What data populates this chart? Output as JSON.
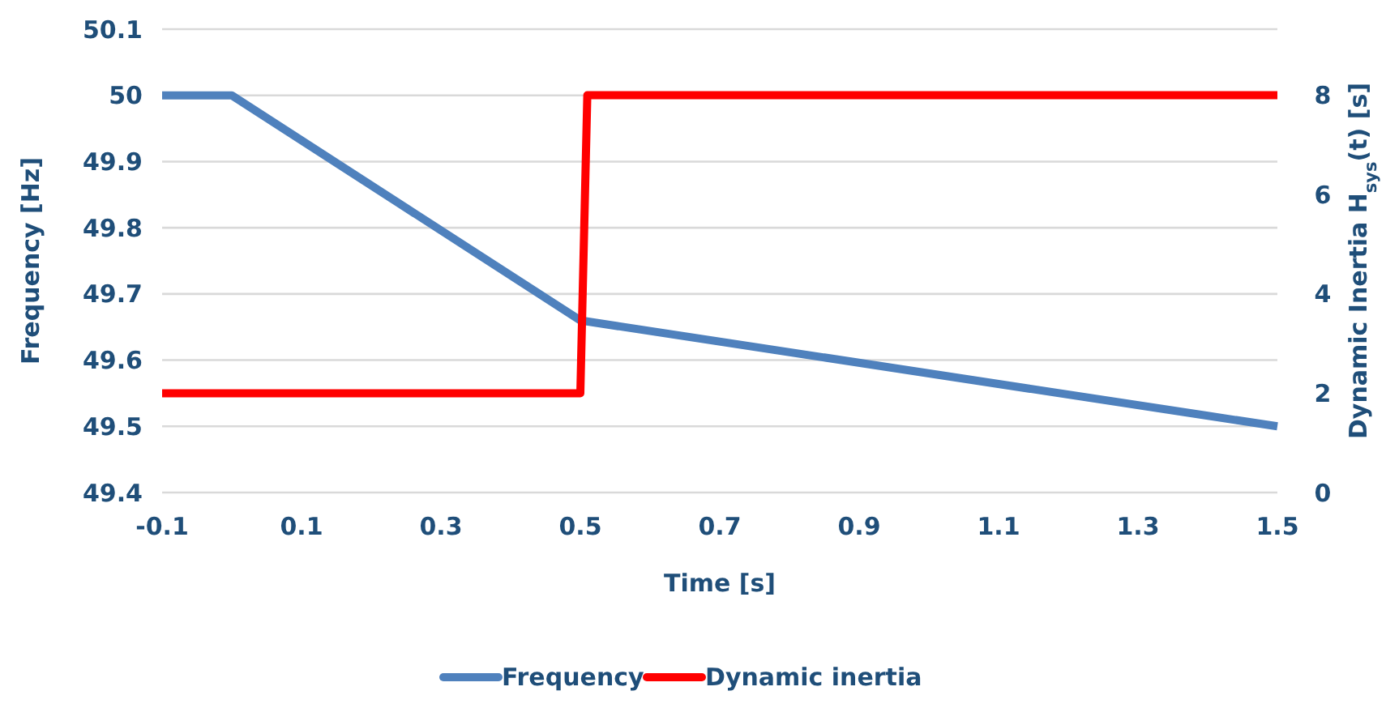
{
  "chart_data": {
    "type": "line",
    "xlabel": "Time [s]",
    "ylabel": "Frequency  [Hz]",
    "y2label": "Dynamic Inertia H$_{sys}$(t)  [s]",
    "xlim": [
      -0.1,
      1.5
    ],
    "xticks": [
      -0.1,
      0.1,
      0.3,
      0.5,
      0.7,
      0.9,
      1.1,
      1.3,
      1.5
    ],
    "ylim": [
      49.4,
      50.1
    ],
    "yticks": [
      49.4,
      49.5,
      49.6,
      49.7,
      49.8,
      49.9,
      50,
      50.1
    ],
    "y2lim": [
      0,
      9.33
    ],
    "y2ticks": [
      0,
      2,
      4,
      6,
      8
    ],
    "grid": "y",
    "legend": "bottom",
    "marker": "none",
    "line_style": "solid",
    "series": [
      {
        "name": "Frequency",
        "color": "#4f81bd",
        "x": [
          -0.1,
          0,
          0.5,
          1.5
        ],
        "values": [
          50,
          50,
          49.66,
          49.5
        ]
      },
      {
        "name": "Dynamic inertia",
        "color": "#ff0000",
        "axis": "y2",
        "x": [
          -0.1,
          0.5,
          0.51,
          1.5
        ],
        "values": [
          2,
          2,
          8,
          8
        ]
      }
    ]
  }
}
